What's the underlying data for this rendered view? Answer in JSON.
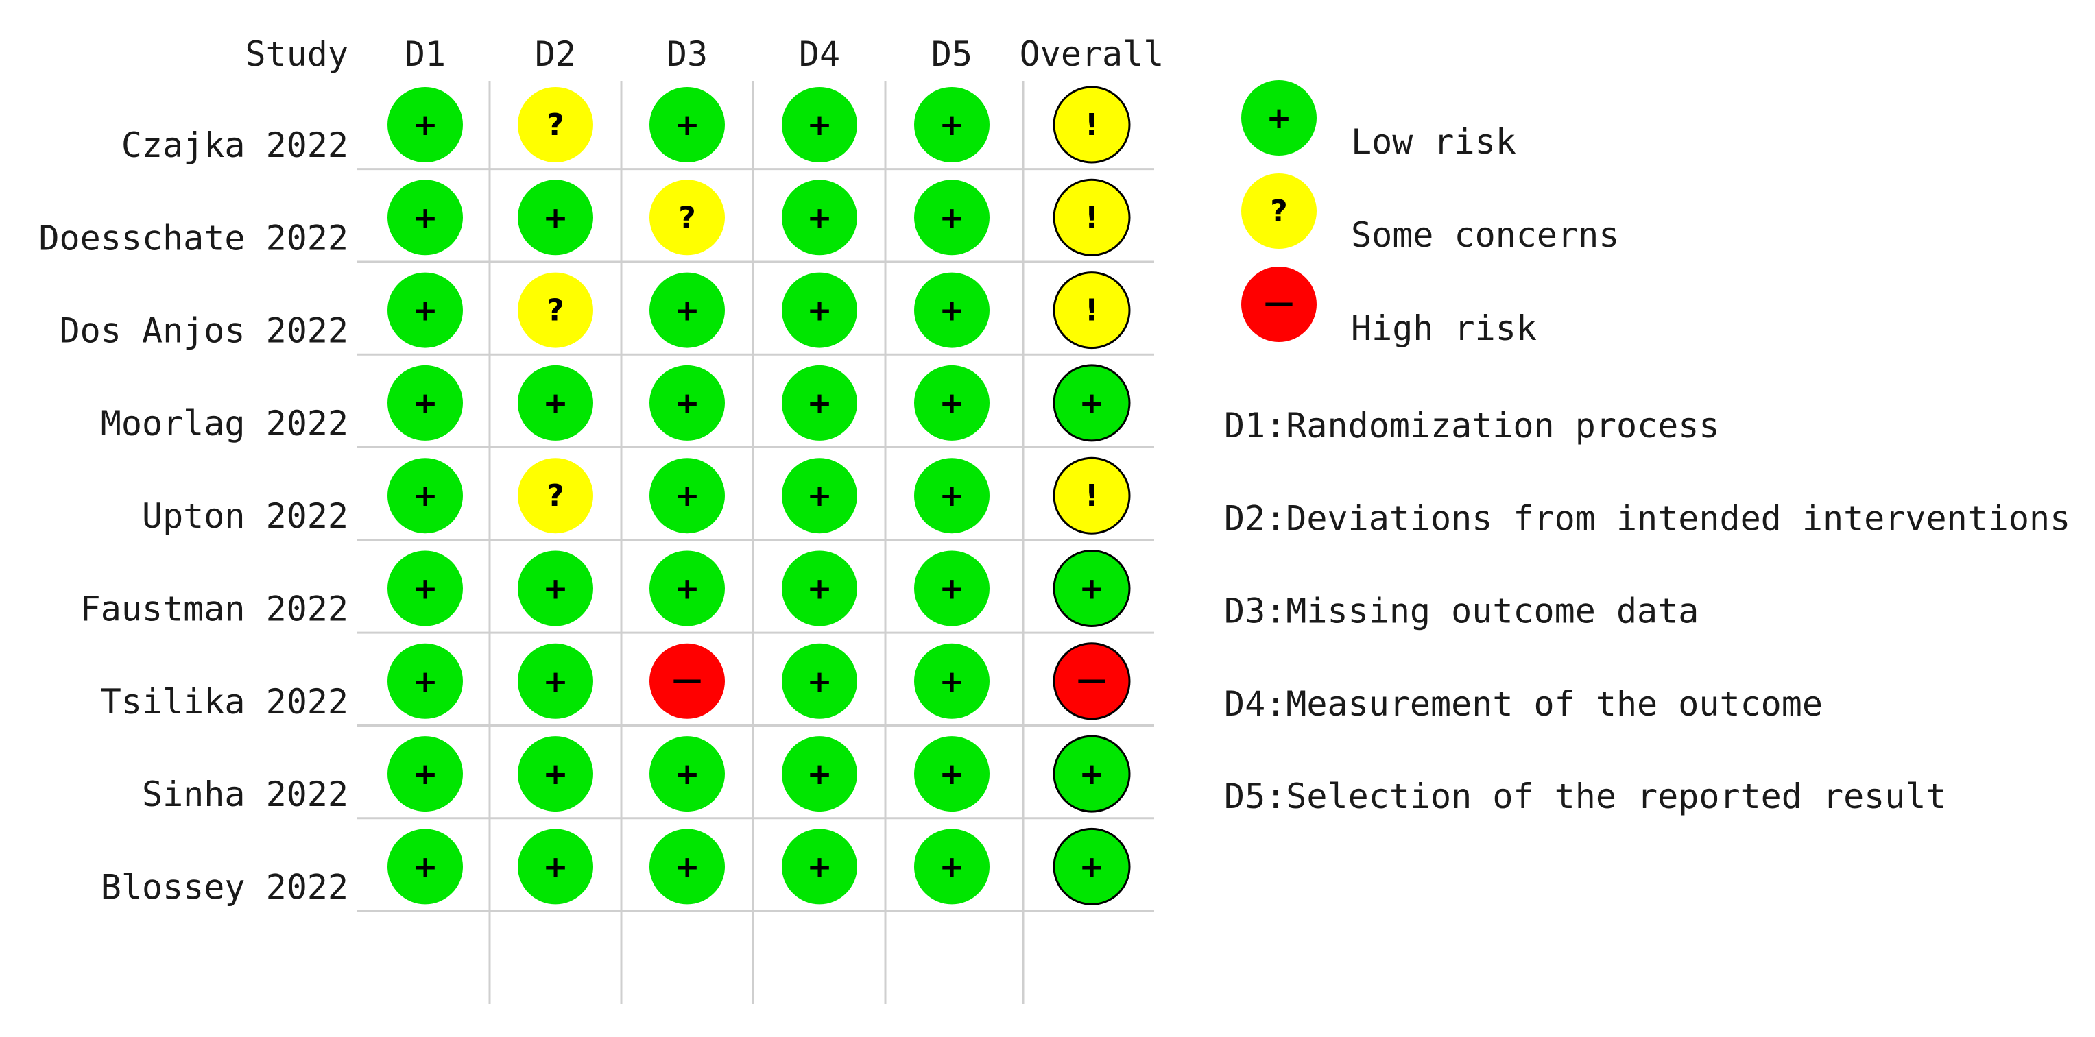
{
  "chart_data": {
    "type": "table",
    "columns": [
      "Study",
      "D1",
      "D2",
      "D3",
      "D4",
      "D5",
      "Overall"
    ],
    "rows": [
      {
        "study": "Czajka 2022",
        "ratings": [
          "low",
          "some",
          "low",
          "low",
          "low",
          "some"
        ]
      },
      {
        "study": "Doesschate 2022",
        "ratings": [
          "low",
          "low",
          "some",
          "low",
          "low",
          "some"
        ]
      },
      {
        "study": "Dos Anjos 2022",
        "ratings": [
          "low",
          "some",
          "low",
          "low",
          "low",
          "some"
        ]
      },
      {
        "study": "Moorlag 2022",
        "ratings": [
          "low",
          "low",
          "low",
          "low",
          "low",
          "low"
        ]
      },
      {
        "study": "Upton 2022",
        "ratings": [
          "low",
          "some",
          "low",
          "low",
          "low",
          "some"
        ]
      },
      {
        "study": "Faustman 2022",
        "ratings": [
          "low",
          "low",
          "low",
          "low",
          "low",
          "low"
        ]
      },
      {
        "study": "Tsilika 2022",
        "ratings": [
          "low",
          "low",
          "high",
          "low",
          "low",
          "high"
        ]
      },
      {
        "study": "Sinha 2022",
        "ratings": [
          "low",
          "low",
          "low",
          "low",
          "low",
          "low"
        ]
      },
      {
        "study": "Blossey 2022",
        "ratings": [
          "low",
          "low",
          "low",
          "low",
          "low",
          "low"
        ]
      }
    ],
    "levels": {
      "low": {
        "label": "Low risk",
        "color": "#00e600",
        "symbol": "+",
        "overall_symbol": "+"
      },
      "some": {
        "label": "Some concerns",
        "color": "#ffff00",
        "symbol": "?",
        "overall_symbol": "!"
      },
      "high": {
        "label": "High risk",
        "color": "#ff0000",
        "symbol": "—",
        "overall_symbol": "—"
      }
    },
    "legend_order": [
      "low",
      "some",
      "high"
    ],
    "domain_definitions": [
      "D1:Randomization process",
      "D2:Deviations from intended interventions",
      "D3:Missing outcome data",
      "D4:Measurement of the outcome",
      "D5:Selection of the reported result"
    ]
  }
}
